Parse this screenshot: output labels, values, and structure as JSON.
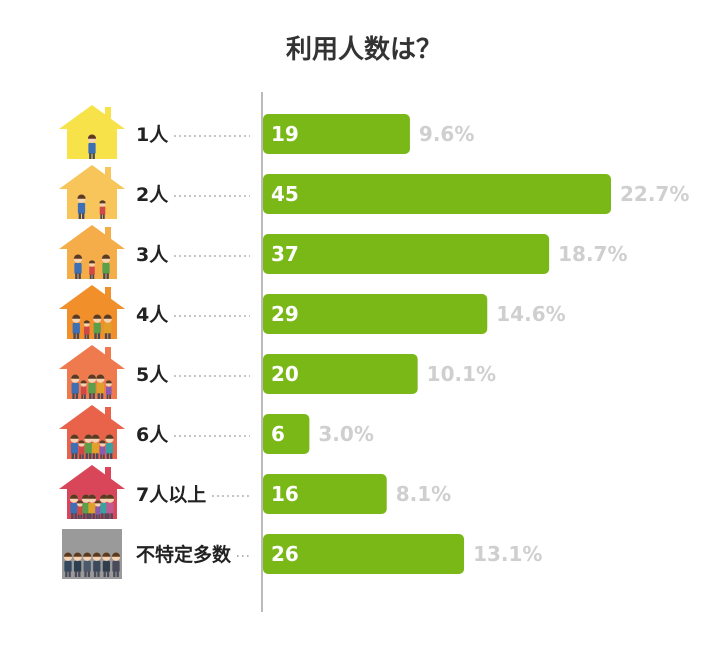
{
  "chart_data": {
    "type": "bar",
    "orientation": "horizontal",
    "title": "利用人数は？",
    "categories": [
      "1人",
      "2人",
      "3人",
      "4人",
      "5人",
      "6人",
      "7人以上",
      "不特定多数"
    ],
    "values": [
      19,
      45,
      37,
      29,
      20,
      6,
      16,
      26
    ],
    "percent_labels": [
      "9.6%",
      "22.7%",
      "18.7%",
      "14.6%",
      "10.1%",
      "3.0%",
      "8.1%",
      "13.1%"
    ],
    "xlim": [
      0,
      45
    ],
    "grid": false,
    "legend": "none"
  },
  "colors": {
    "bar": "#7ab818",
    "value_text": "#ffffff",
    "percent_text": "#cfcfcf",
    "axis": "#bbbbbb",
    "leader_dots": "#999999",
    "icon_colors": [
      "#f7e24a",
      "#f7c55a",
      "#f5ad4a",
      "#f18f2a",
      "#ee7a4e",
      "#e9624a",
      "#d9465a",
      "#9a9a9a"
    ]
  },
  "icons": [
    "house-1-person-icon",
    "house-2-people-icon",
    "house-3-people-icon",
    "house-4-people-icon",
    "house-5-people-icon",
    "house-6-people-icon",
    "house-7-people-icon",
    "crowd-icon"
  ]
}
